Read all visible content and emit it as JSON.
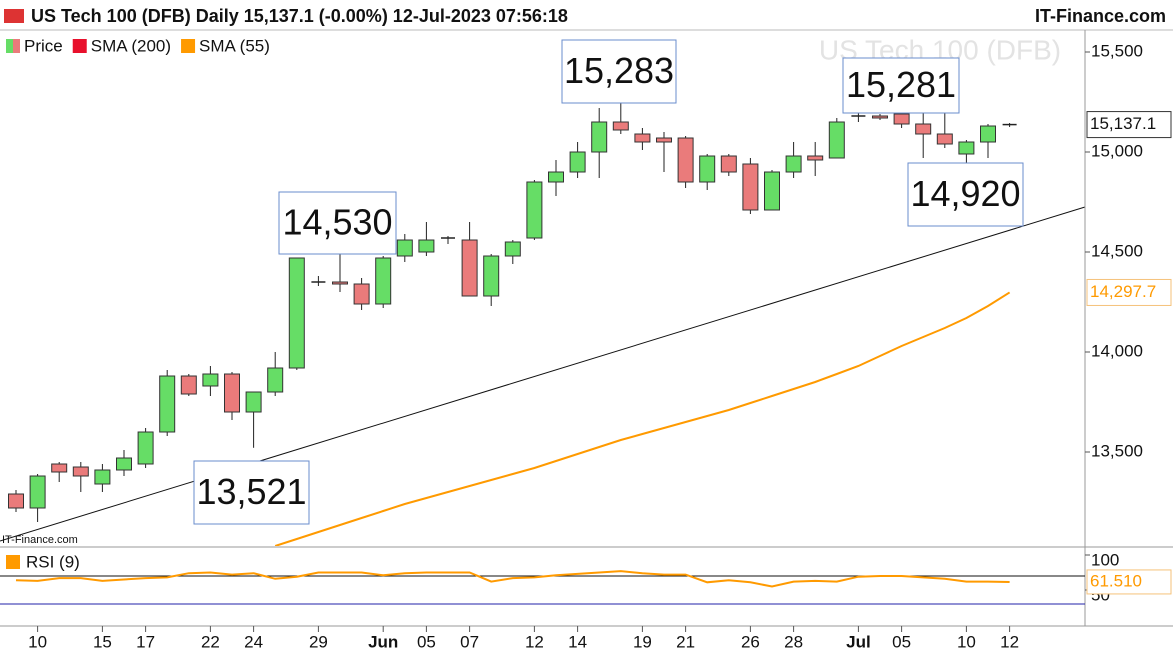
{
  "header": {
    "title": "US Tech 100 (DFB) Daily 15,137.1 (-0.00%) 12-Jul-2023 07:56:18",
    "site": "IT-Finance.com"
  },
  "chart_data": [
    {
      "type": "candlestick",
      "watermark": "US Tech 100 (DFB)",
      "source": "IT-Finance.com",
      "categories": [
        null,
        "10",
        null,
        null,
        "15",
        null,
        "17",
        null,
        null,
        "22",
        null,
        "24",
        null,
        null,
        "29",
        null,
        null,
        "Jun",
        null,
        "05",
        null,
        "07",
        null,
        null,
        "12",
        null,
        "14",
        null,
        null,
        "19",
        null,
        "21",
        null,
        null,
        "26",
        null,
        "28",
        null,
        null,
        "Jul",
        null,
        "05",
        null,
        null,
        "10",
        null,
        "12"
      ],
      "series": [
        {
          "name": "Price",
          "color": "#66dd66",
          "down_color": "#ea7b7b",
          "open": [
            13290,
            13220,
            13440,
            13425,
            13340,
            13410,
            13440,
            13600,
            13880,
            13830,
            13890,
            13700,
            13800,
            13920,
            14350,
            14350,
            14340,
            14240,
            14480,
            14500,
            14570,
            14560,
            14280,
            14480,
            14570,
            14850,
            14900,
            15000,
            15150,
            15090,
            15070,
            15070,
            14850,
            14980,
            14940,
            14710,
            14900,
            14980,
            14970,
            15180,
            15180,
            15190,
            15140,
            15090,
            14990,
            15050,
            15130
          ],
          "high": [
            13310,
            13390,
            13450,
            13450,
            13440,
            13510,
            13620,
            13910,
            13890,
            13930,
            13900,
            13800,
            14000,
            14470,
            14380,
            14530,
            14370,
            14480,
            14590,
            14650,
            14580,
            14650,
            14490,
            14560,
            14860,
            14960,
            15050,
            15220,
            15283,
            15120,
            15100,
            15080,
            14990,
            14990,
            14970,
            14910,
            15050,
            15050,
            15170,
            15230,
            15190,
            15281,
            15210,
            15200,
            15060,
            15140,
            15145
          ],
          "low": [
            13200,
            13150,
            13350,
            13300,
            13300,
            13380,
            13420,
            13580,
            13780,
            13780,
            13660,
            13521,
            13780,
            13910,
            14330,
            14300,
            14210,
            14220,
            14450,
            14480,
            14540,
            14280,
            14230,
            14440,
            14560,
            14780,
            14870,
            14870,
            15090,
            15010,
            14900,
            14820,
            14810,
            14880,
            14690,
            14710,
            14870,
            14880,
            14970,
            15150,
            15160,
            15120,
            14970,
            15020,
            14920,
            14970,
            15125
          ],
          "close": [
            13220,
            13380,
            13400,
            13380,
            13410,
            13470,
            13600,
            13880,
            13790,
            13890,
            13700,
            13800,
            13920,
            14470,
            14350,
            14340,
            14240,
            14470,
            14560,
            14560,
            14570,
            14280,
            14480,
            14550,
            14850,
            14900,
            15000,
            15150,
            15110,
            15050,
            15050,
            14850,
            14980,
            14900,
            14710,
            14900,
            14980,
            14960,
            15150,
            15180,
            15170,
            15140,
            15090,
            15040,
            15050,
            15130,
            15137.1
          ],
          "last_label": {
            "value": 15137.1,
            "label": "15,137.1"
          }
        },
        {
          "name": "SMA (200)",
          "color": "#e8102c"
        },
        {
          "name": "SMA (55)",
          "color": "#ff9a00",
          "values": [
            null,
            null,
            null,
            null,
            null,
            null,
            null,
            null,
            null,
            null,
            null,
            null,
            13030,
            13065,
            13100,
            13135,
            13170,
            13205,
            13240,
            13270,
            13300,
            13330,
            13360,
            13390,
            13420,
            13455,
            13490,
            13525,
            13560,
            13590,
            13620,
            13650,
            13680,
            13710,
            13745,
            13780,
            13815,
            13850,
            13890,
            13930,
            13980,
            14030,
            14075,
            14120,
            14170,
            14230,
            14297.7
          ],
          "last_label": {
            "value": 14297.7,
            "label": "14,297.7"
          }
        }
      ],
      "ylim": [
        13030,
        15610
      ],
      "yticks": [
        {
          "value": 13500,
          "label": "13,500"
        },
        {
          "value": 14000,
          "label": "14,000"
        },
        {
          "value": 14500,
          "label": "14,500"
        },
        {
          "value": 15000,
          "label": "15,000"
        },
        {
          "value": 15500,
          "label": "15,500"
        }
      ],
      "annotations": [
        {
          "value": 15283,
          "label": "15,283"
        },
        {
          "value": 14530,
          "label": "14,530"
        },
        {
          "value": 13521,
          "label": "13,521"
        },
        {
          "value": 15281,
          "label": "15,281"
        },
        {
          "value": 14920,
          "label": "14,920"
        }
      ]
    },
    {
      "type": "line",
      "series": [
        {
          "name": "RSI (9)",
          "color": "#ff9a00",
          "values": [
            64,
            63,
            67,
            67,
            63,
            65,
            67,
            68,
            74,
            75,
            72,
            74,
            66,
            69,
            75,
            75,
            75,
            71,
            74,
            75,
            75,
            75,
            62,
            67,
            68,
            71,
            73,
            75,
            77,
            74,
            72,
            72,
            61,
            64,
            61,
            55,
            62,
            63,
            62,
            69,
            70,
            70,
            68,
            66,
            62,
            62,
            61.51
          ],
          "last_label": {
            "value": 61.51,
            "label": "61.510"
          }
        }
      ],
      "ylim": [
        0,
        110
      ],
      "yticks": [
        50,
        100
      ],
      "levels": [
        70,
        30
      ]
    }
  ]
}
